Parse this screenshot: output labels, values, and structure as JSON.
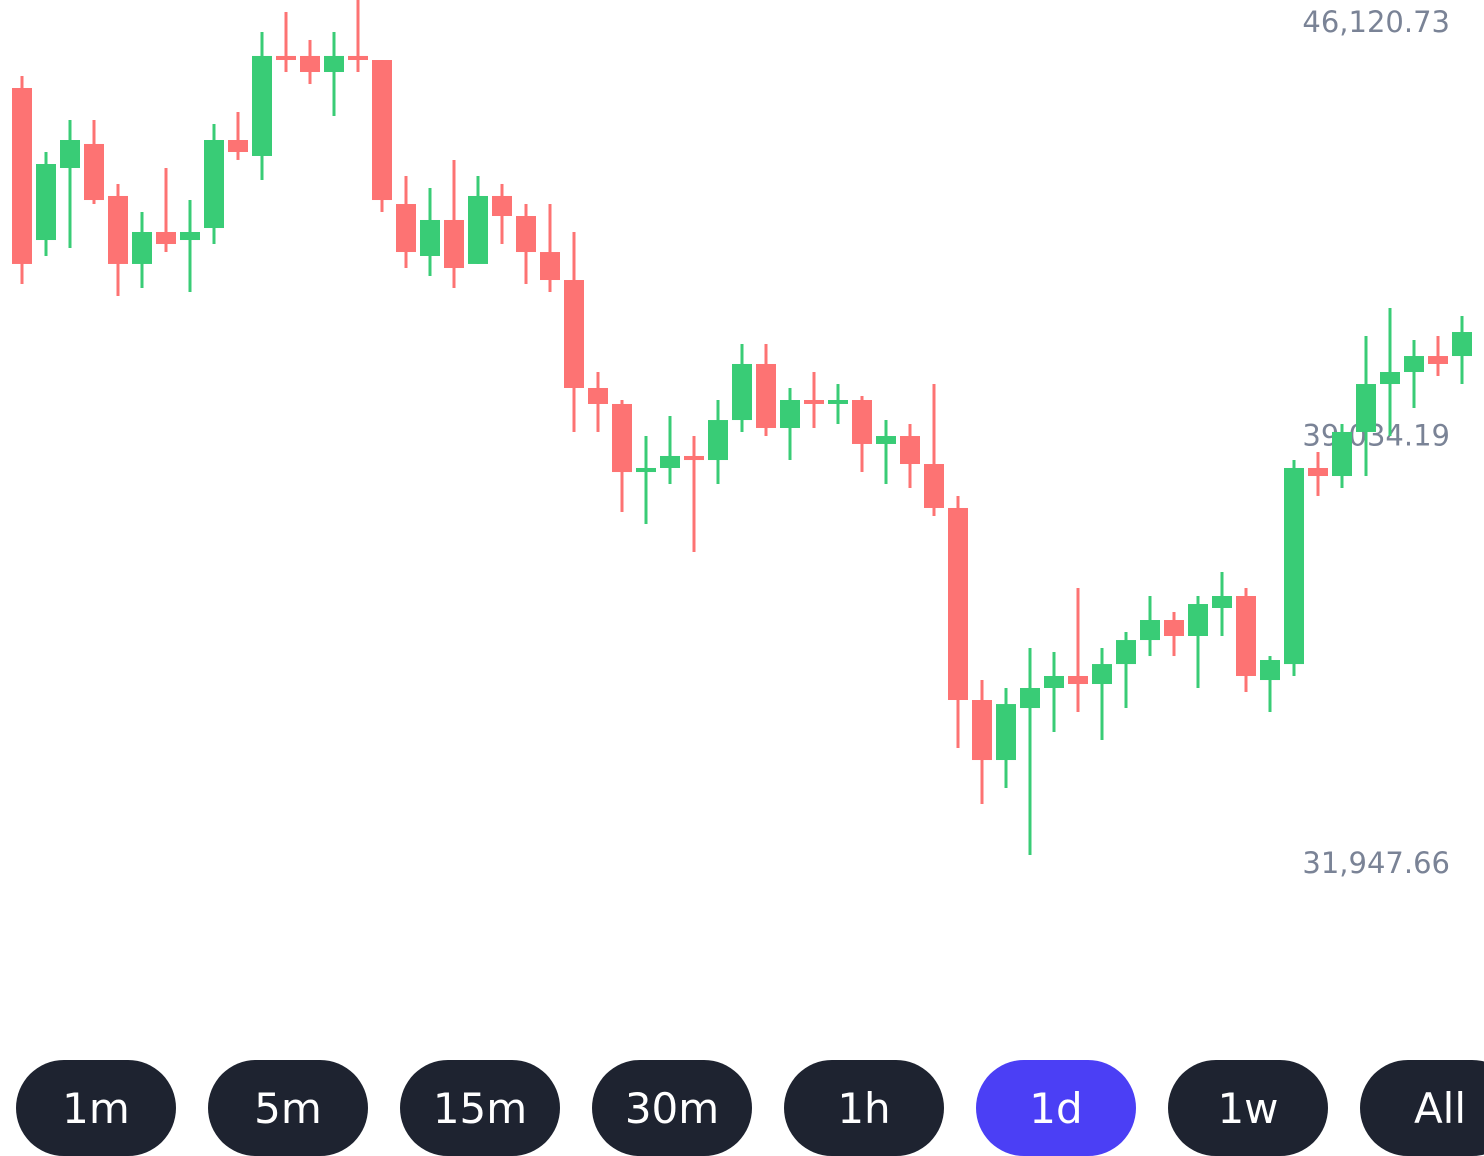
{
  "chart_data": {
    "type": "candlestick",
    "open": [
      44662,
      42142,
      43336,
      43734,
      42872,
      41745,
      42275,
      42142,
      42341,
      43800,
      43535,
      45193,
      45193,
      44927,
      45193,
      45126,
      42739,
      41877,
      42474,
      41745,
      42872,
      42540,
      41943,
      41479,
      39689,
      39424,
      38296,
      38363,
      38562,
      38495,
      39158,
      40087,
      39026,
      39490,
      39424,
      39490,
      38761,
      38893,
      38429,
      37700,
      34517,
      33522,
      34384,
      34716,
      34915,
      34782,
      35113,
      35511,
      35843,
      35578,
      36042,
      36241,
      34848,
      35113,
      38363,
      38230,
      38960,
      39755,
      39954,
      40219,
      40219
    ],
    "high": [
      44861,
      43601,
      44132,
      44132,
      43071,
      42607,
      43336,
      42805,
      44065,
      44264,
      45591,
      45922,
      45458,
      45591,
      46121,
      45126,
      43203,
      43004,
      43469,
      43203,
      43071,
      42739,
      42739,
      42275,
      39954,
      39490,
      38893,
      39225,
      38893,
      39490,
      40418,
      40418,
      39689,
      39954,
      39755,
      39556,
      39158,
      39092,
      39755,
      37899,
      34848,
      34716,
      35379,
      35312,
      36373,
      35379,
      35644,
      36241,
      35976,
      36241,
      36639,
      36373,
      35246,
      38495,
      38628,
      39092,
      40551,
      41015,
      40485,
      40551,
      40882
    ],
    "low": [
      41413,
      41877,
      42010,
      42739,
      41214,
      41347,
      41943,
      41280,
      42076,
      43469,
      43137,
      44927,
      44728,
      44198,
      44927,
      42607,
      41678,
      41546,
      41347,
      41745,
      42076,
      41413,
      41280,
      38960,
      38960,
      37633,
      37434,
      38097,
      36970,
      38097,
      38960,
      38893,
      38495,
      39026,
      39092,
      38296,
      38097,
      38031,
      37567,
      33721,
      32793,
      33058,
      31948,
      33986,
      34318,
      33854,
      34384,
      35246,
      35246,
      34716,
      35578,
      34649,
      34318,
      34915,
      37899,
      38031,
      38230,
      38893,
      39357,
      39888,
      39755
    ],
    "close": [
      41745,
      43402,
      43800,
      42805,
      41745,
      42275,
      42076,
      42275,
      43800,
      43601,
      45193,
      45126,
      44927,
      45193,
      45126,
      42805,
      41943,
      42474,
      41678,
      42872,
      42540,
      41943,
      41479,
      39689,
      39424,
      38296,
      38363,
      38562,
      38495,
      39158,
      40087,
      39026,
      39490,
      39424,
      39490,
      38761,
      38893,
      38429,
      37700,
      34517,
      33522,
      34450,
      34716,
      34915,
      34782,
      35113,
      35511,
      35843,
      35578,
      36108,
      36241,
      34915,
      35180,
      38363,
      38230,
      38960,
      39755,
      39954,
      40219,
      40087,
      40617
    ],
    "up_color": "#39cc76",
    "down_color": "#fd7373",
    "ylim": [
      31947.66,
      46120.73
    ],
    "yticks": [
      {
        "value": 46120.73,
        "label": "46,120.73"
      },
      {
        "value": 39034.19,
        "label": "39,034.19"
      },
      {
        "value": 31947.66,
        "label": "31,947.66"
      }
    ]
  },
  "timeframes": [
    {
      "label": "1m",
      "active": false
    },
    {
      "label": "5m",
      "active": false
    },
    {
      "label": "15m",
      "active": false
    },
    {
      "label": "30m",
      "active": false
    },
    {
      "label": "1h",
      "active": false
    },
    {
      "label": "1d",
      "active": true
    },
    {
      "label": "1w",
      "active": false
    },
    {
      "label": "All",
      "active": false
    }
  ]
}
